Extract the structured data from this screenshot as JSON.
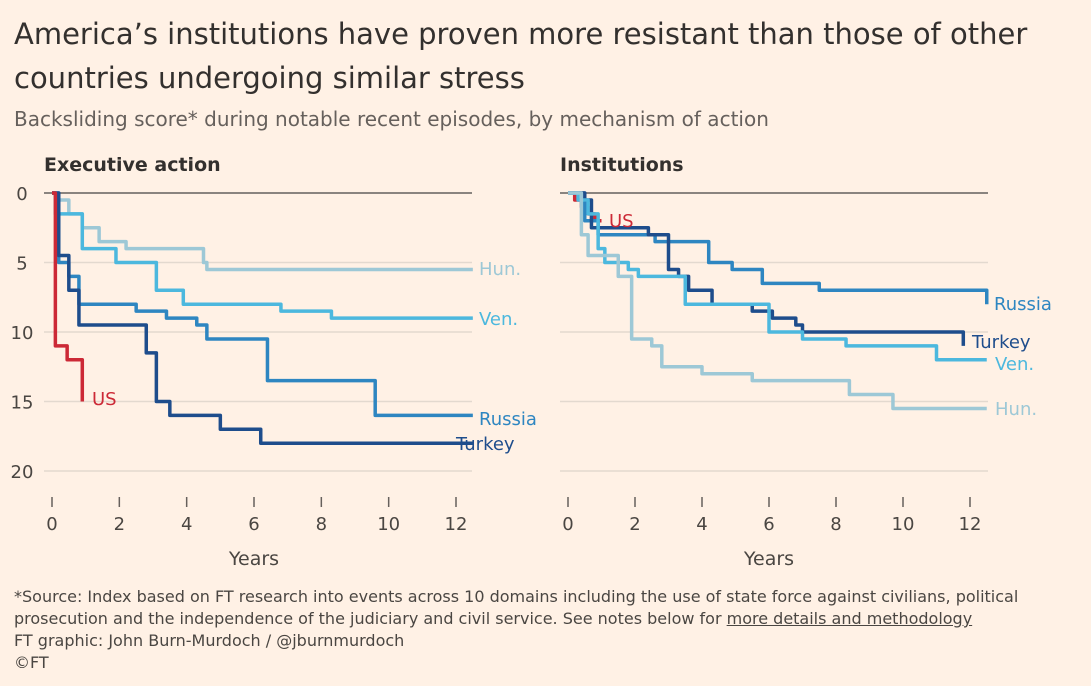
{
  "header": {
    "title": "America’s institutions have proven more resistant than those of other countries undergoing similar stress",
    "subtitle": "Backsliding score* during notable recent episodes, by mechanism of action"
  },
  "footer": {
    "source": "*Source: Index based on FT research into events across 10 domains including the use of state force against civilians, political prosecution and the independence of the judiciary and civil service. See notes below for",
    "source_link": "more details and methodology",
    "credit": "FT graphic: John Burn-Murdoch / @jburnmurdoch",
    "copyright": "©FT"
  },
  "colors": {
    "US": "#cc2936",
    "Hun.": "#9dc8d6",
    "Ven.": "#4cb8de",
    "Russia": "#2e86c1",
    "Turkey": "#1e4d8c",
    "grid": "#e3d9cf",
    "zero": "#8a847f"
  },
  "chart_data": [
    {
      "type": "line",
      "title": "Executive action",
      "xlabel": "Years",
      "ylabel": "",
      "xlim": [
        0,
        12.5
      ],
      "ylim": [
        0,
        20
      ],
      "y_inverted": true,
      "xticks": [
        0,
        2,
        4,
        6,
        8,
        10,
        12
      ],
      "yticks": [
        0,
        5,
        10,
        15,
        20
      ],
      "series": [
        {
          "name": "Hun.",
          "step": true,
          "x": [
            0,
            0.1,
            0.5,
            0.6,
            0.9,
            1.4,
            1.9,
            2.2,
            2.6,
            3.1,
            3.5,
            4.2,
            4.5,
            4.6,
            12.5
          ],
          "y": [
            0,
            0.5,
            1.5,
            1.5,
            2.5,
            3.5,
            3.5,
            4,
            4,
            4,
            4,
            4,
            5,
            5.5,
            5.5
          ]
        },
        {
          "name": "Ven.",
          "step": true,
          "x": [
            0,
            0.1,
            0.4,
            0.9,
            1.9,
            2.7,
            3.1,
            3.9,
            4.9,
            6.8,
            8.3,
            12.5
          ],
          "y": [
            0,
            1.5,
            1.5,
            4,
            5,
            5,
            7,
            8,
            8,
            8.5,
            9,
            9
          ]
        },
        {
          "name": "Russia",
          "step": true,
          "x": [
            0,
            0.2,
            0.5,
            0.8,
            2.5,
            3.4,
            4.3,
            4.6,
            6.4,
            8.4,
            9.6,
            12.5
          ],
          "y": [
            0,
            5,
            6,
            8,
            8.5,
            9,
            9.5,
            10.5,
            13.5,
            13.5,
            16,
            16
          ]
        },
        {
          "name": "Turkey",
          "step": true,
          "x": [
            0,
            0.2,
            0.5,
            0.8,
            2.4,
            2.8,
            3.1,
            3.5,
            5,
            6.2,
            12,
            12.5
          ],
          "y": [
            0,
            4.5,
            7,
            9.5,
            9.5,
            11.5,
            15,
            16,
            17,
            18,
            18,
            18
          ]
        },
        {
          "name": "US",
          "step": true,
          "x": [
            0,
            0.1,
            0.25,
            0.45,
            0.6,
            0.9
          ],
          "y": [
            0,
            11,
            11,
            12,
            12,
            15
          ]
        }
      ]
    },
    {
      "type": "line",
      "title": "Institutions",
      "xlabel": "Years",
      "ylabel": "",
      "xlim": [
        0,
        12.5
      ],
      "ylim": [
        0,
        20
      ],
      "y_inverted": true,
      "xticks": [
        0,
        2,
        4,
        6,
        8,
        10,
        12
      ],
      "yticks": [
        0,
        5,
        10,
        15,
        20
      ],
      "series": [
        {
          "name": "US",
          "step": true,
          "x": [
            0,
            0.2,
            0.4,
            0.6,
            0.8,
            1
          ],
          "y": [
            0,
            0.5,
            1,
            1.5,
            2,
            2
          ]
        },
        {
          "name": "Russia",
          "step": true,
          "x": [
            0,
            0.5,
            0.9,
            1.5,
            2.1,
            2.6,
            3.5,
            4.2,
            4.9,
            5.8,
            7.5,
            9.5,
            12,
            12.5
          ],
          "y": [
            0,
            2,
            3,
            3,
            3,
            3.5,
            3.5,
            5,
            5.5,
            6.5,
            7,
            7,
            7,
            8
          ]
        },
        {
          "name": "Turkey",
          "step": true,
          "x": [
            0,
            0.5,
            0.7,
            1,
            1.5,
            2.4,
            2.7,
            3.0,
            3.3,
            3.6,
            4.3,
            5.3,
            5.5,
            6.1,
            6.8,
            7,
            11.6,
            11.8
          ],
          "y": [
            0,
            0.5,
            2.5,
            2.5,
            2.5,
            3,
            3,
            5.5,
            6,
            7,
            8,
            8,
            8.5,
            9,
            9.5,
            10,
            10,
            11
          ]
        },
        {
          "name": "Ven.",
          "step": true,
          "x": [
            0,
            0.3,
            0.6,
            0.9,
            1.1,
            1.7,
            1.8,
            2.1,
            3.5,
            4.0,
            6.0,
            7.0,
            8.3,
            11.0,
            12.5
          ],
          "y": [
            0,
            0.5,
            1.5,
            4,
            5,
            5,
            5.5,
            6,
            8,
            8,
            10,
            10.5,
            11,
            12,
            12
          ]
        },
        {
          "name": "Hun.",
          "step": true,
          "x": [
            0,
            0.4,
            0.6,
            1,
            1.5,
            1.9,
            2.1,
            2.5,
            2.8,
            4.0,
            5.5,
            7.0,
            8.4,
            9.7,
            12.5
          ],
          "y": [
            0,
            3,
            4.5,
            4.5,
            6,
            10.5,
            10.5,
            11,
            12.5,
            13,
            13.5,
            13.5,
            14.5,
            15.5,
            15.5
          ]
        }
      ]
    }
  ],
  "labels": [
    {
      "panel": 0,
      "text": "Hun.",
      "series": "Hun."
    },
    {
      "panel": 0,
      "text": "Ven.",
      "series": "Ven."
    },
    {
      "panel": 0,
      "text": "Russia",
      "series": "Russia"
    },
    {
      "panel": 0,
      "text": "Turkey",
      "series": "Turkey"
    },
    {
      "panel": 0,
      "text": "US",
      "series": "US"
    },
    {
      "panel": 1,
      "text": "US",
      "series": "US"
    },
    {
      "panel": 1,
      "text": "Russia",
      "series": "Russia"
    },
    {
      "panel": 1,
      "text": "Turkey",
      "series": "Turkey"
    },
    {
      "panel": 1,
      "text": "Ven.",
      "series": "Ven."
    },
    {
      "panel": 1,
      "text": "Hun.",
      "series": "Hun."
    }
  ]
}
